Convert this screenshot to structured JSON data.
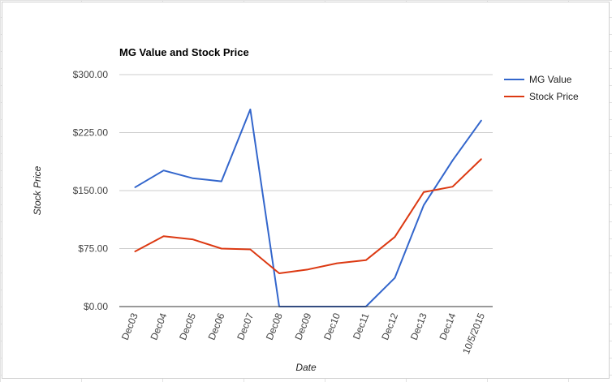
{
  "chart_data": {
    "type": "line",
    "title": "MG Value and Stock Price",
    "xlabel": "Date",
    "ylabel": "Stock Price",
    "categories": [
      "Dec03",
      "Dec04",
      "Dec05",
      "Dec06",
      "Dec07",
      "Dec08",
      "Dec09",
      "Dec10",
      "Dec11",
      "Dec12",
      "Dec13",
      "Dec14",
      "10/5/2015"
    ],
    "y_ticks": [
      "$0.00",
      "$75.00",
      "$150.00",
      "$225.00",
      "$300.00"
    ],
    "y_tick_values": [
      0,
      75,
      150,
      225,
      300
    ],
    "ylim": [
      0,
      300
    ],
    "grid": true,
    "legend_position": "right",
    "series": [
      {
        "name": "MG Value",
        "color": "#3366cc",
        "values": [
          154,
          176,
          166,
          162,
          255,
          0,
          0,
          0,
          0,
          37,
          131,
          189,
          241
        ]
      },
      {
        "name": "Stock Price",
        "color": "#dc3912",
        "values": [
          71,
          91,
          87,
          75,
          74,
          43,
          48,
          56,
          60,
          90,
          148,
          155,
          191
        ]
      }
    ]
  }
}
